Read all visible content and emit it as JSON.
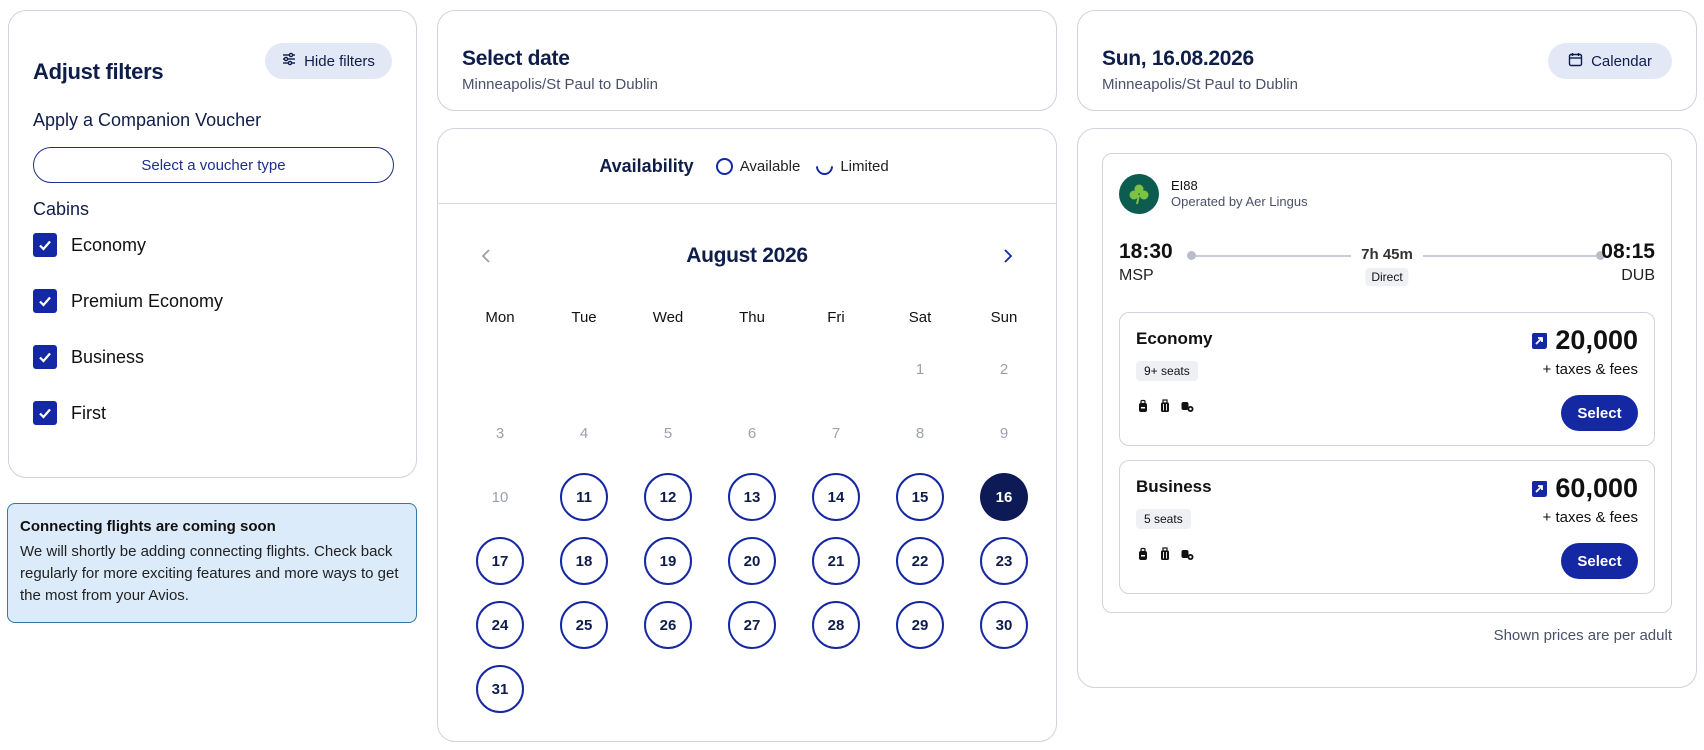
{
  "filters": {
    "title": "Adjust filters",
    "hide_label": "Hide filters",
    "voucher_heading": "Apply a Companion Voucher",
    "voucher_button": "Select a voucher type",
    "cabins_heading": "Cabins",
    "cabins": [
      {
        "label": "Economy",
        "checked": true
      },
      {
        "label": "Premium Economy",
        "checked": true
      },
      {
        "label": "Business",
        "checked": true
      },
      {
        "label": "First",
        "checked": true
      }
    ]
  },
  "info": {
    "title": "Connecting flights are coming soon",
    "text": "We will shortly be adding connecting flights. Check back regularly for more exciting features and more ways to get the most from your Avios."
  },
  "select_date": {
    "title": "Select date",
    "route": "Minneapolis/St Paul to Dublin"
  },
  "flight_header": {
    "date": "Sun, 16.08.2026",
    "route": "Minneapolis/St Paul to Dublin",
    "calendar_label": "Calendar"
  },
  "availability": {
    "label": "Availability",
    "available": "Available",
    "limited": "Limited"
  },
  "calendar": {
    "month": "August 2026",
    "weekdays": [
      "Mon",
      "Tue",
      "Wed",
      "Thu",
      "Fri",
      "Sat",
      "Sun"
    ],
    "leading_blanks": 5,
    "days": [
      {
        "d": "1",
        "s": "disabled"
      },
      {
        "d": "2",
        "s": "disabled"
      },
      {
        "d": "3",
        "s": "disabled"
      },
      {
        "d": "4",
        "s": "disabled"
      },
      {
        "d": "5",
        "s": "disabled"
      },
      {
        "d": "6",
        "s": "disabled"
      },
      {
        "d": "7",
        "s": "disabled"
      },
      {
        "d": "8",
        "s": "disabled"
      },
      {
        "d": "9",
        "s": "disabled"
      },
      {
        "d": "10",
        "s": "disabled"
      },
      {
        "d": "11",
        "s": "available"
      },
      {
        "d": "12",
        "s": "available"
      },
      {
        "d": "13",
        "s": "available"
      },
      {
        "d": "14",
        "s": "available"
      },
      {
        "d": "15",
        "s": "available"
      },
      {
        "d": "16",
        "s": "selected"
      },
      {
        "d": "17",
        "s": "available"
      },
      {
        "d": "18",
        "s": "available"
      },
      {
        "d": "19",
        "s": "available"
      },
      {
        "d": "20",
        "s": "available"
      },
      {
        "d": "21",
        "s": "available"
      },
      {
        "d": "22",
        "s": "available"
      },
      {
        "d": "23",
        "s": "available"
      },
      {
        "d": "24",
        "s": "available"
      },
      {
        "d": "25",
        "s": "available"
      },
      {
        "d": "26",
        "s": "available"
      },
      {
        "d": "27",
        "s": "available"
      },
      {
        "d": "28",
        "s": "available"
      },
      {
        "d": "29",
        "s": "available"
      },
      {
        "d": "30",
        "s": "available"
      },
      {
        "d": "31",
        "s": "available"
      }
    ]
  },
  "flight": {
    "number": "EI88",
    "operated_by": "Operated by Aer Lingus",
    "departure_time": "18:30",
    "departure_code": "MSP",
    "arrival_time": "08:15",
    "arrival_code": "DUB",
    "duration": "7h 45m",
    "stops": "Direct",
    "fares": [
      {
        "cabin": "Economy",
        "seats": "9+ seats",
        "price": "20,000",
        "taxes": "+ taxes & fees",
        "select": "Select"
      },
      {
        "cabin": "Business",
        "seats": "5 seats",
        "price": "60,000",
        "taxes": "+ taxes & fees",
        "select": "Select"
      }
    ],
    "note": "Shown prices are per adult"
  },
  "colors": {
    "brand_navy": "#0f1d4a",
    "accent_blue": "#1528a3",
    "selected_day": "#0e1a56",
    "info_bg": "#dcebfa",
    "aer_lingus_green": "#0c5c4f"
  }
}
